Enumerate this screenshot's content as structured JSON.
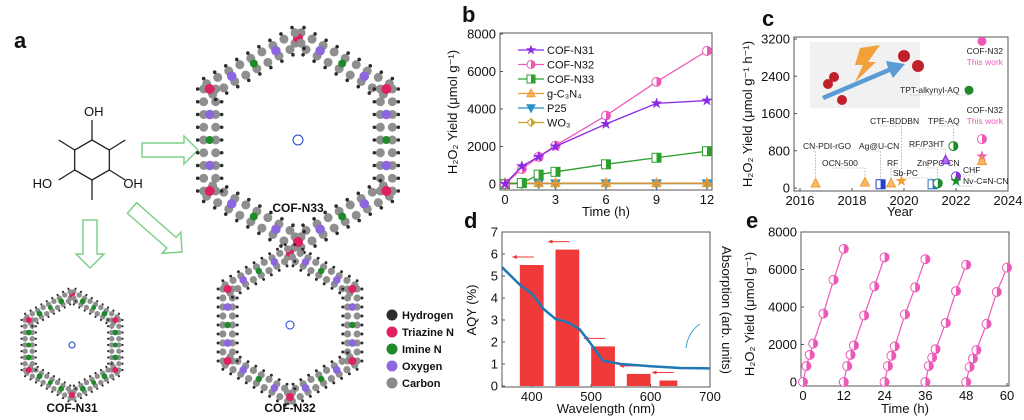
{
  "panel_a": {
    "letter": "a",
    "monomer_labels": [
      "OH",
      "OH",
      "HO"
    ],
    "structures": [
      "COF-N33",
      "COF-N31",
      "COF-N32"
    ],
    "legend": [
      {
        "label": "Hydrogen",
        "color": "#2b2b2b"
      },
      {
        "label": "Triazine N",
        "color": "#e0205f"
      },
      {
        "label": "Imine N",
        "color": "#1e8a2a"
      },
      {
        "label": "Oxygen",
        "color": "#8d66e0"
      },
      {
        "label": "Carbon",
        "color": "#8a8a8a"
      }
    ],
    "arrow_color": "#7fd08a"
  },
  "chart_data": [
    {
      "panel": "b",
      "type": "line",
      "xlabel": "Time (h)",
      "ylabel": "H₂O₂ Yield (μmol g⁻¹)",
      "xlim": [
        0,
        12
      ],
      "ylim": [
        0,
        8000
      ],
      "xticks": [
        "0",
        "3",
        "6",
        "9",
        "12"
      ],
      "yticks": [
        "0",
        "2000",
        "4000",
        "6000",
        "8000"
      ],
      "legend_position": "top-left",
      "x": [
        0,
        1,
        2,
        3,
        6,
        9,
        12
      ],
      "series": [
        {
          "name": "COF-N31",
          "marker": "star",
          "color": "#8a2be2",
          "values": [
            0,
            950,
            1450,
            2000,
            3200,
            4300,
            4450
          ]
        },
        {
          "name": "COF-N32",
          "marker": "half-circle",
          "color": "#ec5ab8",
          "values": [
            0,
            800,
            1450,
            2050,
            3650,
            5450,
            7100
          ]
        },
        {
          "name": "COF-N33",
          "marker": "square",
          "color": "#2ca02c",
          "values": [
            0,
            50,
            500,
            650,
            1050,
            1400,
            1750
          ]
        },
        {
          "name": "g-C₃N₄",
          "marker": "triangle",
          "color": "#f39a2b",
          "values": [
            50,
            50,
            50,
            50,
            50,
            50,
            50
          ]
        },
        {
          "name": "P25",
          "marker": "triangle-down",
          "color": "#2a8fc8",
          "values": [
            30,
            30,
            30,
            30,
            30,
            30,
            30
          ]
        },
        {
          "name": "WO₃",
          "marker": "diamond",
          "color": "#c9a41c",
          "values": [
            20,
            20,
            20,
            20,
            20,
            20,
            20
          ]
        }
      ]
    },
    {
      "panel": "c",
      "type": "scatter",
      "xlabel": "Year",
      "ylabel": "H₂O₂ Yield (μmol g⁻¹ h⁻¹)",
      "xlim": [
        2016,
        2024
      ],
      "ylim": [
        0,
        3200
      ],
      "xticks": [
        "2016",
        "2018",
        "2020",
        "2022",
        "2024"
      ],
      "yticks": [
        "0",
        "800",
        "1600",
        "2400",
        "3200"
      ],
      "points": [
        {
          "label": "CN-PDI-rGO",
          "x": 2016.6,
          "y": 100,
          "marker": "triangle",
          "color": "#f39a2b"
        },
        {
          "label": "OCN-500",
          "x": 2018.5,
          "y": 120,
          "marker": "triangle",
          "color": "#f39a2b"
        },
        {
          "label": "Ag@U-CN",
          "x": 2019.1,
          "y": 80,
          "marker": "square",
          "color": "#1f3fd0"
        },
        {
          "label": "RF",
          "x": 2019.5,
          "y": 100,
          "marker": "triangle",
          "color": "#f39a2b"
        },
        {
          "label": "CTF-BDDBN",
          "x": 2019.9,
          "y": 150,
          "marker": "star",
          "color": "#f39a2b"
        },
        {
          "label": "Sb-PC",
          "x": 2021.1,
          "y": 80,
          "marker": "square",
          "color": "#2a6fd0"
        },
        {
          "label": "ZnPPC-CN",
          "x": 2021.3,
          "y": 100,
          "marker": "half-circle",
          "color": "#1e8a2a"
        },
        {
          "label": "RF/P3HT",
          "x": 2021.6,
          "y": 600,
          "marker": "triangle",
          "color": "#8a2be2"
        },
        {
          "label": "TPE-AQ",
          "x": 2021.9,
          "y": 900,
          "marker": "half-circle",
          "color": "#1e8a2a"
        },
        {
          "label": "CHF",
          "x": 2022.0,
          "y": 250,
          "marker": "half-circle",
          "color": "#8a2be2"
        },
        {
          "label": "Nv-C≡N-CN",
          "x": 2022.0,
          "y": 150,
          "marker": "star",
          "color": "#1e8a2a"
        },
        {
          "label": "TPT-alkynyl-AQ",
          "x": 2022.5,
          "y": 2100,
          "marker": "circle",
          "color": "#1e8a2a"
        },
        {
          "label": "COF-N32",
          "x": 2023.0,
          "y": 3150,
          "marker": "circle",
          "color": "#ec5ab8"
        },
        {
          "label": "COF-N32",
          "x": 2023.0,
          "y": 1050,
          "marker": "half-circle",
          "color": "#ec5ab8"
        },
        {
          "label": "",
          "x": 2023.0,
          "y": 680,
          "marker": "star",
          "color": "#ec5ab8"
        },
        {
          "label": "",
          "x": 2023.0,
          "y": 580,
          "marker": "triangle",
          "color": "#f39a2b"
        }
      ],
      "annotations": [
        "This work",
        "This work"
      ]
    },
    {
      "panel": "d",
      "type": "bar",
      "xlabel": "Wavelength (nm)",
      "ylabel": "AQY (%)",
      "y2label": "Absorption (arb. units)",
      "xlim": [
        350,
        700
      ],
      "ylim": [
        0,
        7
      ],
      "xticks": [
        "400",
        "500",
        "600",
        "700"
      ],
      "yticks": [
        "0",
        "1",
        "2",
        "3",
        "4",
        "5",
        "6",
        "7"
      ],
      "categories": [
        400,
        460,
        520,
        580,
        630
      ],
      "values": [
        5.5,
        6.2,
        1.8,
        0.55,
        0.25
      ],
      "bar_color": "#f03a3a",
      "absorption": {
        "color": "#1f78b4",
        "x": [
          350,
          380,
          400,
          420,
          440,
          460,
          480,
          500,
          520,
          550,
          600,
          650,
          700
        ],
        "y": [
          5.4,
          4.6,
          4.2,
          3.5,
          3.05,
          2.9,
          2.6,
          1.9,
          1.15,
          1.0,
          0.9,
          0.82,
          0.8
        ]
      }
    },
    {
      "panel": "e",
      "type": "line",
      "xlabel": "Time (h)",
      "ylabel": "H₂O₂ Yield (μmol g⁻¹)",
      "xlim": [
        0,
        60
      ],
      "ylim": [
        0,
        8000
      ],
      "xticks": [
        "0",
        "12",
        "24",
        "36",
        "48",
        "60"
      ],
      "yticks": [
        "0",
        "2000",
        "4000",
        "6000",
        "8000"
      ],
      "color": "#ec5ab8",
      "cycle_times": [
        0,
        1,
        2,
        3,
        6,
        9,
        12
      ],
      "cycles": [
        [
          0,
          850,
          1450,
          2050,
          3650,
          5450,
          7100
        ],
        [
          0,
          850,
          1450,
          1950,
          3550,
          5100,
          6650
        ],
        [
          0,
          850,
          1400,
          1900,
          3600,
          5050,
          6550
        ],
        [
          0,
          850,
          1300,
          1750,
          3150,
          4850,
          6250
        ],
        [
          0,
          800,
          1250,
          1700,
          3100,
          4800,
          6100
        ]
      ]
    }
  ],
  "panel_letters": [
    "b",
    "c",
    "d",
    "e"
  ]
}
